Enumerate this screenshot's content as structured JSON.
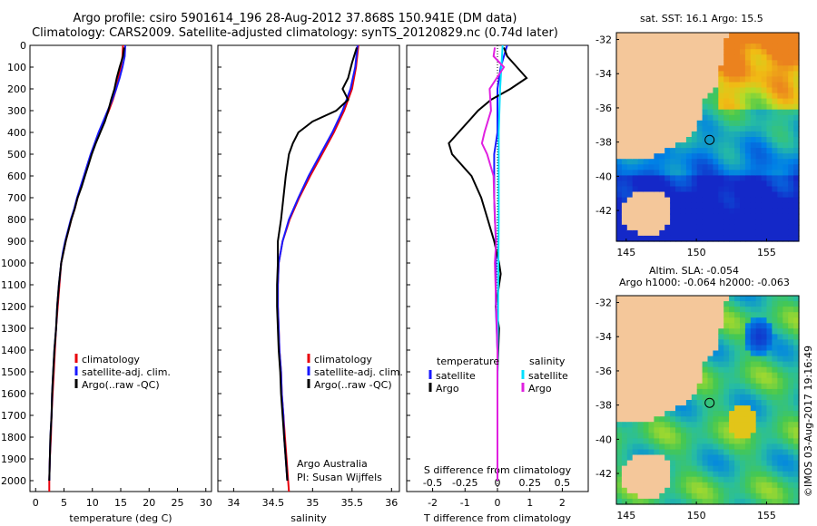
{
  "title_line1": "Argo profile: csiro 5901614_196 28-Aug-2012 37.868S 150.941E (DM data)",
  "title_line2": "Climatology: CARS2009. Satellite-adjusted climatology: synTS_20120829.nc (0.74d later)",
  "credit_line1": "Argo Australia",
  "credit_line2": "PI: Susan Wijffels",
  "map1_title": "sat. SST: 16.1 Argo: 15.5",
  "map2_title1": "Altim. SLA: -0.054",
  "map2_title2": "Argo h1000: -0.064 h2000: -0.063",
  "watermark": "©IMOS 03-Aug-2017 19:16:49",
  "colors": {
    "climatology": "#e8000b",
    "satellite": "#1a1aff",
    "argo": "#000000",
    "sal_satellite": "#00e0ff",
    "sal_argo": "#e020e0",
    "land": "#f4c79a"
  },
  "chart_data": [
    {
      "type": "line",
      "xlabel": "temperature (deg C)",
      "ylabel": "",
      "xlim": [
        -1,
        31
      ],
      "ylim": [
        2050,
        0
      ],
      "xticks": [
        0,
        5,
        10,
        15,
        20,
        25,
        30
      ],
      "yticks": [
        0,
        100,
        200,
        300,
        400,
        500,
        600,
        700,
        800,
        900,
        1000,
        1100,
        1200,
        1300,
        1400,
        1500,
        1600,
        1700,
        1800,
        1900,
        2000
      ],
      "legend": [
        "climatology",
        "satellite-adj. clim.",
        "Argo(..raw -QC)"
      ],
      "series": [
        {
          "name": "climatology",
          "color": "#e8000b",
          "points": [
            [
              15.4,
              0
            ],
            [
              15.3,
              50
            ],
            [
              15,
              100
            ],
            [
              14.6,
              150
            ],
            [
              14.2,
              200
            ],
            [
              13.6,
              250
            ],
            [
              12.9,
              300
            ],
            [
              12.1,
              350
            ],
            [
              11.3,
              400
            ],
            [
              10.5,
              450
            ],
            [
              9.8,
              500
            ],
            [
              9.2,
              550
            ],
            [
              8.6,
              600
            ],
            [
              8,
              650
            ],
            [
              7.4,
              700
            ],
            [
              6.9,
              750
            ],
            [
              6.3,
              800
            ],
            [
              5.8,
              850
            ],
            [
              5.3,
              900
            ],
            [
              4.9,
              950
            ],
            [
              4.5,
              1000
            ],
            [
              4.2,
              1100
            ],
            [
              3.9,
              1200
            ],
            [
              3.6,
              1300
            ],
            [
              3.4,
              1400
            ],
            [
              3.2,
              1500
            ],
            [
              3,
              1600
            ],
            [
              2.8,
              1700
            ],
            [
              2.7,
              1800
            ],
            [
              2.5,
              1900
            ],
            [
              2.4,
              2000
            ],
            [
              2.4,
              2050
            ]
          ]
        },
        {
          "name": "satellite-adj. clim.",
          "color": "#1a1aff",
          "points": [
            [
              15.8,
              0
            ],
            [
              15.7,
              50
            ],
            [
              15.3,
              100
            ],
            [
              14.8,
              150
            ],
            [
              14.2,
              200
            ],
            [
              13.5,
              250
            ],
            [
              12.7,
              300
            ],
            [
              11.9,
              350
            ],
            [
              11.1,
              400
            ],
            [
              10.4,
              450
            ],
            [
              9.7,
              500
            ],
            [
              9.1,
              550
            ],
            [
              8.5,
              600
            ],
            [
              7.9,
              650
            ],
            [
              7.3,
              700
            ],
            [
              6.8,
              750
            ],
            [
              6.2,
              800
            ],
            [
              5.7,
              850
            ],
            [
              5.2,
              900
            ],
            [
              4.8,
              950
            ],
            [
              4.5,
              1000
            ],
            [
              4.1,
              1100
            ],
            [
              3.8,
              1200
            ],
            [
              3.6,
              1300
            ],
            [
              3.3,
              1400
            ],
            [
              3.1,
              1500
            ],
            [
              2.9,
              1600
            ],
            [
              2.8,
              1700
            ],
            [
              2.6,
              1800
            ],
            [
              2.5,
              1900
            ],
            [
              2.4,
              2000
            ]
          ]
        },
        {
          "name": "Argo(..raw -QC)",
          "color": "#000000",
          "points": [
            [
              15.6,
              10
            ],
            [
              15.4,
              50
            ],
            [
              14.8,
              100
            ],
            [
              14.3,
              150
            ],
            [
              13.9,
              200
            ],
            [
              13.3,
              250
            ],
            [
              12.8,
              300
            ],
            [
              12.2,
              350
            ],
            [
              11.4,
              400
            ],
            [
              10.6,
              450
            ],
            [
              9.9,
              500
            ],
            [
              9.3,
              550
            ],
            [
              8.7,
              600
            ],
            [
              8.1,
              650
            ],
            [
              7.4,
              700
            ],
            [
              6.9,
              750
            ],
            [
              6.3,
              800
            ],
            [
              5.8,
              850
            ],
            [
              5.3,
              900
            ],
            [
              4.9,
              950
            ],
            [
              4.5,
              1000
            ],
            [
              4.1,
              1100
            ],
            [
              3.8,
              1200
            ],
            [
              3.6,
              1300
            ],
            [
              3.3,
              1400
            ],
            [
              3.1,
              1500
            ],
            [
              2.9,
              1600
            ],
            [
              2.8,
              1700
            ],
            [
              2.6,
              1800
            ],
            [
              2.5,
              1900
            ],
            [
              2.4,
              2000
            ]
          ]
        }
      ]
    },
    {
      "type": "line",
      "xlabel": "salinity",
      "ylabel": "",
      "xlim": [
        33.8,
        36.1
      ],
      "ylim": [
        2050,
        0
      ],
      "xticks": [
        34,
        34.5,
        35,
        35.5,
        36
      ],
      "legend": [
        "climatology",
        "satellite-adj. clim.",
        "Argo(..raw -QC)"
      ],
      "series": [
        {
          "name": "climatology",
          "color": "#e8000b",
          "points": [
            [
              35.58,
              0
            ],
            [
              35.55,
              100
            ],
            [
              35.5,
              200
            ],
            [
              35.4,
              300
            ],
            [
              35.27,
              400
            ],
            [
              35.12,
              500
            ],
            [
              34.97,
              600
            ],
            [
              34.83,
              700
            ],
            [
              34.71,
              800
            ],
            [
              34.62,
              900
            ],
            [
              34.57,
              1000
            ],
            [
              34.56,
              1100
            ],
            [
              34.56,
              1200
            ],
            [
              34.57,
              1300
            ],
            [
              34.58,
              1400
            ],
            [
              34.6,
              1500
            ],
            [
              34.61,
              1600
            ],
            [
              34.63,
              1700
            ],
            [
              34.65,
              1800
            ],
            [
              34.67,
              1900
            ],
            [
              34.69,
              2000
            ],
            [
              34.7,
              2050
            ]
          ]
        },
        {
          "name": "satellite-adj. clim.",
          "color": "#1a1aff",
          "points": [
            [
              35.57,
              0
            ],
            [
              35.54,
              100
            ],
            [
              35.48,
              200
            ],
            [
              35.38,
              300
            ],
            [
              35.25,
              400
            ],
            [
              35.1,
              500
            ],
            [
              34.95,
              600
            ],
            [
              34.82,
              700
            ],
            [
              34.7,
              800
            ],
            [
              34.62,
              900
            ],
            [
              34.57,
              1000
            ],
            [
              34.56,
              1100
            ],
            [
              34.56,
              1200
            ],
            [
              34.57,
              1300
            ],
            [
              34.58,
              1400
            ],
            [
              34.6,
              1500
            ],
            [
              34.61,
              1600
            ],
            [
              34.63,
              1700
            ],
            [
              34.64,
              1800
            ],
            [
              34.66,
              1900
            ],
            [
              34.68,
              2000
            ]
          ]
        },
        {
          "name": "Argo(..raw -QC)",
          "color": "#000000",
          "points": [
            [
              35.56,
              10
            ],
            [
              35.5,
              80
            ],
            [
              35.45,
              150
            ],
            [
              35.38,
              200
            ],
            [
              35.45,
              250
            ],
            [
              35.3,
              300
            ],
            [
              35.0,
              350
            ],
            [
              34.82,
              400
            ],
            [
              34.75,
              450
            ],
            [
              34.7,
              500
            ],
            [
              34.66,
              600
            ],
            [
              34.63,
              700
            ],
            [
              34.6,
              800
            ],
            [
              34.56,
              900
            ],
            [
              34.56,
              1000
            ],
            [
              34.55,
              1100
            ],
            [
              34.55,
              1200
            ],
            [
              34.56,
              1300
            ],
            [
              34.57,
              1400
            ],
            [
              34.59,
              1500
            ],
            [
              34.6,
              1600
            ],
            [
              34.62,
              1700
            ],
            [
              34.64,
              1800
            ],
            [
              34.66,
              1900
            ],
            [
              34.68,
              2000
            ]
          ]
        }
      ]
    },
    {
      "type": "line",
      "xlabel": "T difference from climatology",
      "top_xlabel": "S difference from climatology",
      "xlim": [
        -2.8,
        2.8
      ],
      "ylim": [
        2050,
        0
      ],
      "xticks": [
        -2,
        -1,
        0,
        1,
        2
      ],
      "xtick_labels": [
        "-2",
        "-1",
        "0",
        "1",
        "2"
      ],
      "top_xticks": [
        -0.5,
        -0.25,
        0,
        0.25,
        0.5
      ],
      "top_xtick_labels": [
        "-0.5",
        "-0.25",
        "0",
        "0.25",
        "0.5"
      ],
      "legend_titles": [
        "temperature",
        "salinity"
      ],
      "legend": [
        "satellite",
        "Argo",
        "satellite",
        "Argo"
      ],
      "series": [
        {
          "name": "satellite",
          "group": "temperature",
          "color": "#1a1aff",
          "points": [
            [
              0.3,
              0
            ],
            [
              0.2,
              50
            ],
            [
              0.1,
              100
            ],
            [
              0,
              200
            ],
            [
              0,
              400
            ],
            [
              -0.1,
              500
            ],
            [
              -0.1,
              700
            ],
            [
              -0.05,
              900
            ],
            [
              -0.05,
              1200
            ],
            [
              0,
              1400
            ],
            [
              0,
              2000
            ]
          ]
        },
        {
          "name": "Argo",
          "group": "temperature",
          "color": "#000000",
          "points": [
            [
              0.2,
              10
            ],
            [
              0.3,
              50
            ],
            [
              0.6,
              100
            ],
            [
              0.9,
              150
            ],
            [
              0.4,
              200
            ],
            [
              -0.2,
              250
            ],
            [
              -0.6,
              300
            ],
            [
              -0.9,
              350
            ],
            [
              -1.2,
              400
            ],
            [
              -1.5,
              450
            ],
            [
              -1.4,
              500
            ],
            [
              -1.1,
              550
            ],
            [
              -0.8,
              600
            ],
            [
              -0.5,
              700
            ],
            [
              -0.3,
              800
            ],
            [
              -0.1,
              900
            ],
            [
              0.05,
              1000
            ],
            [
              0.1,
              1050
            ],
            [
              0.05,
              1100
            ],
            [
              -0.05,
              1200
            ],
            [
              0.05,
              1300
            ],
            [
              0,
              1500
            ],
            [
              0,
              2000
            ]
          ]
        },
        {
          "name": "satellite",
          "group": "salinity",
          "color": "#00e0ff",
          "points": [
            [
              0.04,
              0
            ],
            [
              0.03,
              100
            ],
            [
              0.02,
              200
            ],
            [
              0.01,
              400
            ],
            [
              0.01,
              800
            ],
            [
              0.005,
              1200
            ],
            [
              0,
              1600
            ],
            [
              0,
              2000
            ]
          ]
        },
        {
          "name": "Argo",
          "group": "salinity",
          "color": "#e020e0",
          "points": [
            [
              -0.02,
              10
            ],
            [
              -0.03,
              50
            ],
            [
              0.05,
              100
            ],
            [
              -0.06,
              200
            ],
            [
              -0.05,
              300
            ],
            [
              -0.1,
              400
            ],
            [
              -0.12,
              450
            ],
            [
              -0.08,
              500
            ],
            [
              -0.03,
              600
            ],
            [
              -0.02,
              800
            ],
            [
              -0.01,
              900
            ],
            [
              -0.02,
              1000
            ],
            [
              -0.01,
              1200
            ],
            [
              0,
              1400
            ],
            [
              0,
              1500
            ],
            [
              0,
              2000
            ]
          ]
        }
      ]
    }
  ],
  "maps": [
    {
      "xticks": [
        "145",
        "150",
        "155"
      ],
      "yticks": [
        "-32",
        "-34",
        "-36",
        "-38",
        "-40",
        "-42"
      ],
      "lon": [
        144.3,
        157.3
      ],
      "lat": [
        -43.8,
        -31.6
      ],
      "marker": [
        150.94,
        -37.87
      ]
    },
    {
      "xticks": [
        "145",
        "150",
        "155"
      ],
      "yticks": [
        "-32",
        "-34",
        "-36",
        "-38",
        "-40",
        "-42"
      ],
      "lon": [
        144.3,
        157.3
      ],
      "lat": [
        -43.8,
        -31.6
      ],
      "marker": [
        150.94,
        -37.87
      ]
    }
  ]
}
